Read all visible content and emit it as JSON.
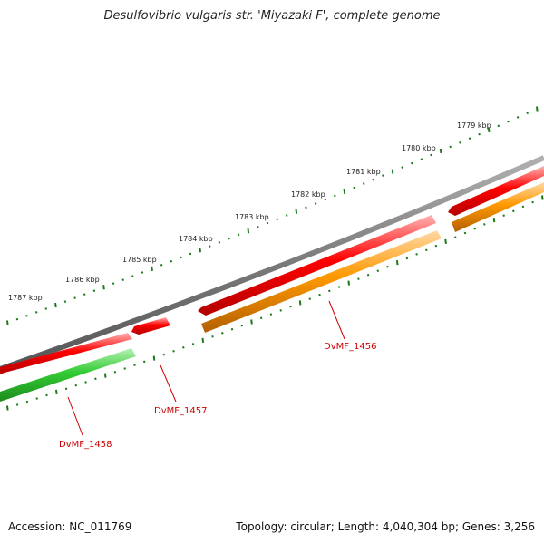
{
  "title": "Desulfovibrio vulgaris str. 'Miyazaki F', complete genome",
  "footer": {
    "accession": "Accession: NC_011769",
    "summary": "Topology: circular; Length: 4,040,304 bp; Genes: 3,256"
  },
  "colors": {
    "backbone": "#808080",
    "gene_red": "#ff0000",
    "gene_orange": "#ff8c00",
    "gene_green": "#33cc33",
    "tick_green": "#1a7a1a",
    "label_red": "#cc0000"
  },
  "scale_labels": [
    "1779 kbp",
    "1780 kbp",
    "1781 kbp",
    "1782 kbp",
    "1783 kbp",
    "1784 kbp",
    "1785 kbp",
    "1786 kbp",
    "1787 kbp"
  ],
  "gene_labels": [
    "DvMF_1456",
    "DvMF_1457",
    "DvMF_1458"
  ]
}
